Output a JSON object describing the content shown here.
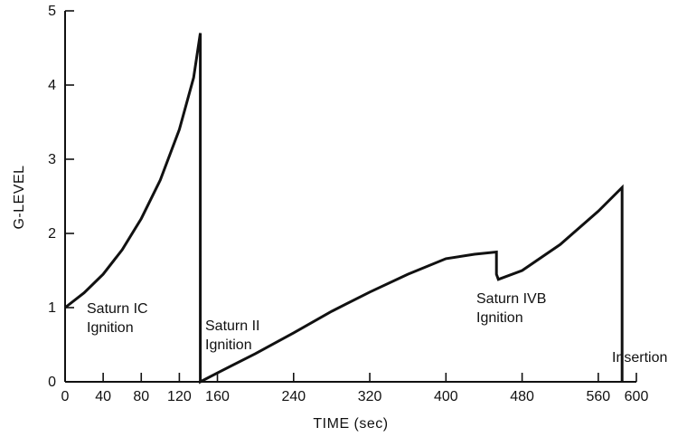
{
  "chart_data": {
    "type": "line",
    "title": "",
    "xlabel": "TIME (sec)",
    "ylabel": "G-LEVEL",
    "xlim": [
      0,
      600
    ],
    "ylim": [
      0,
      5
    ],
    "xticks": [
      0,
      40,
      80,
      120,
      160,
      240,
      320,
      400,
      480,
      560,
      600
    ],
    "yticks": [
      0,
      1,
      2,
      3,
      4,
      5
    ],
    "grid": false,
    "series": [
      {
        "x": [
          0,
          20,
          40,
          60,
          80,
          100,
          120,
          135,
          142,
          142,
          142,
          160,
          200,
          240,
          280,
          320,
          360,
          400,
          430,
          453,
          453,
          455,
          480,
          520,
          560,
          585,
          585,
          585
        ],
        "y": [
          1.0,
          1.2,
          1.45,
          1.78,
          2.2,
          2.72,
          3.4,
          4.1,
          4.7,
          2.5,
          0.0,
          0.12,
          0.38,
          0.66,
          0.95,
          1.21,
          1.45,
          1.66,
          1.72,
          1.75,
          1.45,
          1.38,
          1.5,
          1.85,
          2.3,
          2.62,
          1.0,
          0.0
        ]
      }
    ],
    "annotations": [
      {
        "lines": [
          "Saturn IC",
          "Ignition"
        ]
      },
      {
        "lines": [
          "Saturn II",
          "Ignition"
        ]
      },
      {
        "lines": [
          "Saturn IVB",
          "Ignition"
        ]
      },
      {
        "lines": [
          "Insertion"
        ]
      }
    ]
  }
}
